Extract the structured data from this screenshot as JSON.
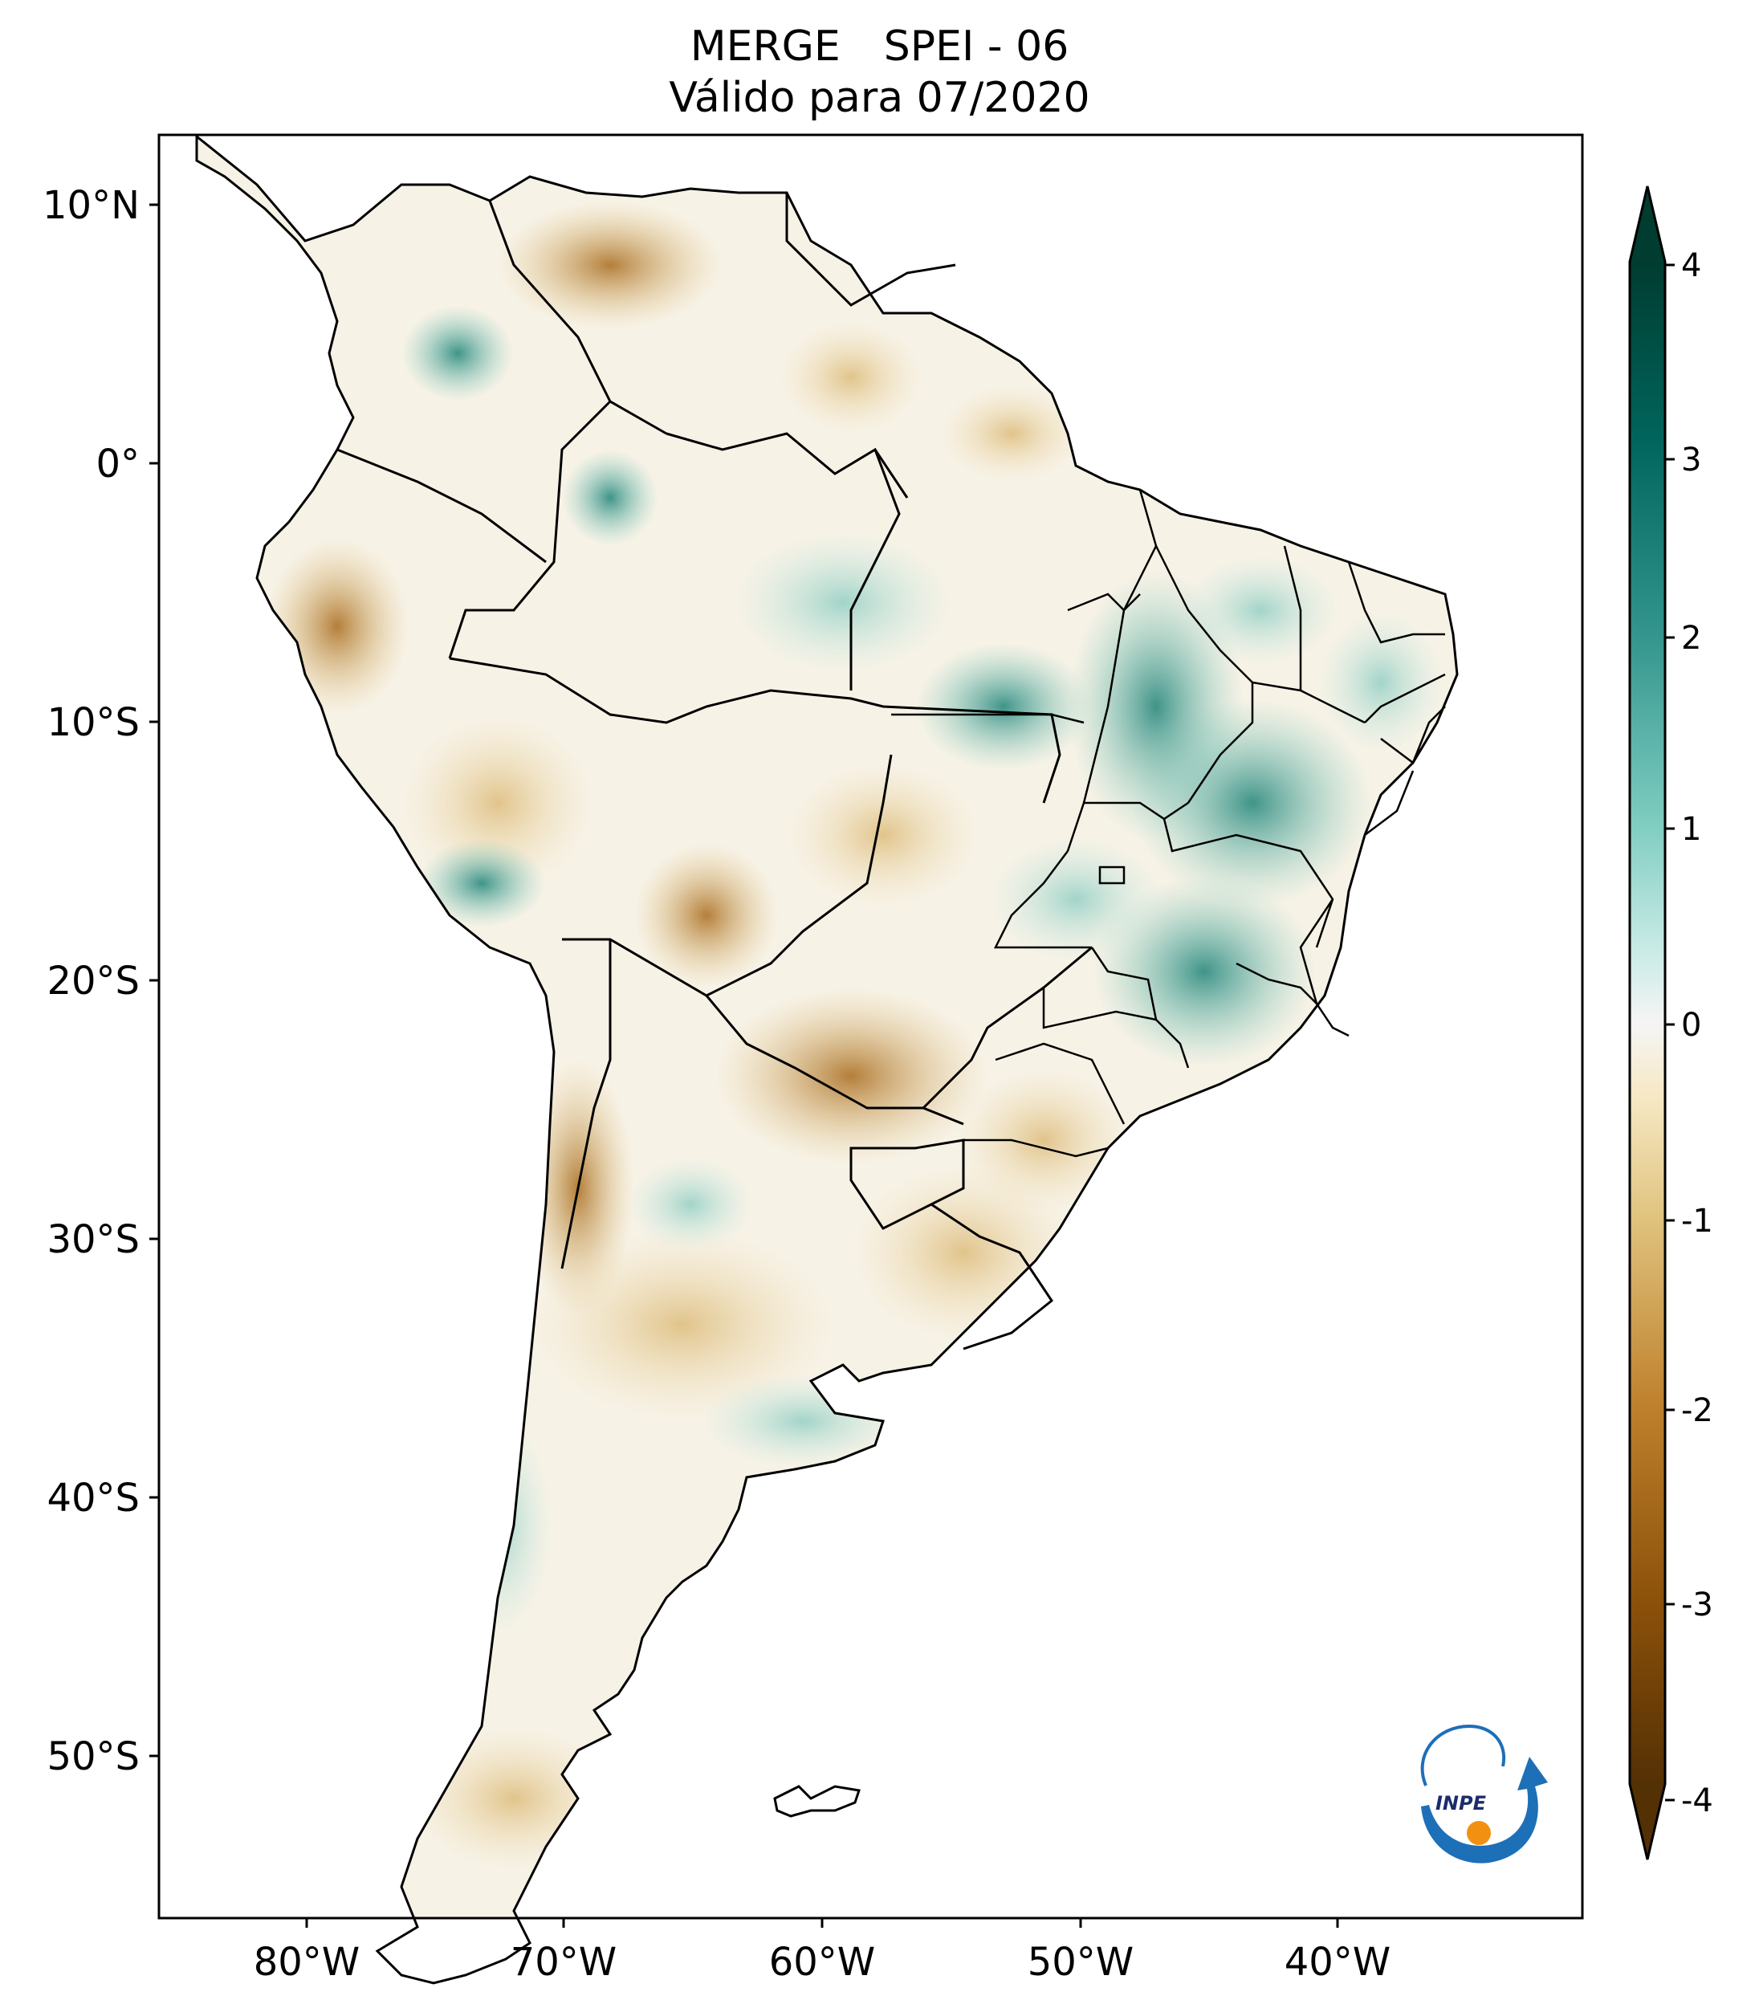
{
  "title": {
    "line1_left": "MERGE",
    "line1_right": "SPEI - 06",
    "line2": "Válido para 07/2020"
  },
  "map": {
    "lat_labels": [
      "10°N",
      "0°",
      "10°S",
      "20°S",
      "30°S",
      "40°S",
      "50°S"
    ],
    "lon_labels": [
      "80°W",
      "70°W",
      "60°W",
      "50°W",
      "40°W"
    ],
    "logo_text": "INPE"
  },
  "colorbar": {
    "ticks": [
      "4",
      "3",
      "2",
      "1",
      "0",
      "-1",
      "-2",
      "-3",
      "-4"
    ],
    "colors": [
      "#003c30",
      "#01665e",
      "#35978f",
      "#80cdc1",
      "#c7eae5",
      "#f5f5f5",
      "#f6e8c3",
      "#dfc27d",
      "#bf812d",
      "#8c510a",
      "#543005"
    ]
  }
}
